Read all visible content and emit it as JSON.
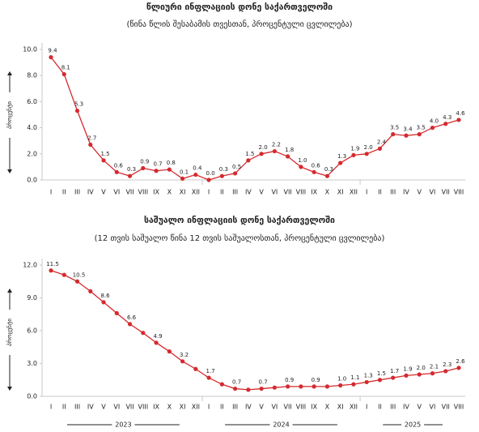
{
  "chart_data": [
    {
      "type": "line",
      "title": "წლიური ინფლაციის დონე საქართველოში",
      "subtitle": "(წინა წლის შესაბამის თვესთან, პროცენტული ცვლილება)",
      "y_label": "პროცენტი",
      "categories": [
        "I",
        "II",
        "III",
        "IV",
        "V",
        "VI",
        "VII",
        "VIII",
        "IX",
        "X",
        "XI",
        "XII",
        "I",
        "II",
        "III",
        "IV",
        "V",
        "VI",
        "VII",
        "VIII",
        "IX",
        "X",
        "XI",
        "XII",
        "I",
        "II",
        "III",
        "IV",
        "V",
        "VI",
        "VII",
        "VIII"
      ],
      "series": [
        {
          "color": "#d42a2f",
          "values": [
            9.4,
            8.1,
            5.3,
            2.7,
            1.5,
            0.6,
            0.3,
            0.9,
            0.7,
            0.8,
            0.1,
            0.4,
            0.0,
            0.3,
            0.5,
            1.5,
            2.0,
            2.2,
            1.8,
            1.0,
            0.6,
            0.3,
            1.3,
            1.9,
            2.0,
            2.4,
            3.5,
            3.4,
            3.5,
            4.0,
            4.3,
            4.6
          ],
          "value_labels": [
            "9.4",
            "8.1",
            "5.3",
            "2.7",
            "1.5",
            "0.6",
            "0.3",
            "0.9",
            "0.7",
            "0.8",
            "0.1",
            "0.4",
            "0.0",
            "0.3",
            "0.5",
            "1.5",
            "2.0",
            "2.2",
            "1.8",
            "1.0",
            "0.6",
            "0.3",
            "1.3",
            "1.9",
            "2.0",
            "2.4",
            "3.5",
            "3.4",
            "3.5",
            "4.0",
            "4.3",
            "4.6"
          ]
        }
      ],
      "ylim": [
        0,
        10
      ],
      "yticks": [
        {
          "value": 0,
          "label": "0.0"
        },
        {
          "value": 2,
          "label": "2.0"
        },
        {
          "value": 4,
          "label": "4.0"
        },
        {
          "value": 6,
          "label": "6.0"
        },
        {
          "value": 8,
          "label": "8.0"
        },
        {
          "value": 10,
          "label": "10.0"
        }
      ]
    },
    {
      "type": "line",
      "title": "საშუალო ინფლაციის დონე საქართველოში",
      "subtitle": "(12 თვის საშუალო წინა 12 თვის საშუალოსთან, პროცენტული ცვლილება)",
      "y_label": "პროცენტი",
      "categories": [
        "I",
        "II",
        "III",
        "IV",
        "V",
        "VI",
        "VII",
        "VIII",
        "IX",
        "X",
        "XI",
        "XII",
        "I",
        "II",
        "III",
        "IV",
        "V",
        "VI",
        "VII",
        "VIII",
        "IX",
        "X",
        "XI",
        "XII",
        "I",
        "II",
        "III",
        "IV",
        "V",
        "VI",
        "VII",
        "VIII"
      ],
      "groups": [
        "2023",
        "2024",
        "2025"
      ],
      "series": [
        {
          "color": "#d42a2f",
          "values": [
            11.5,
            11.1,
            10.5,
            9.6,
            8.6,
            7.6,
            6.6,
            5.8,
            4.9,
            4.1,
            3.2,
            2.5,
            1.7,
            1.1,
            0.7,
            0.6,
            0.7,
            0.8,
            0.9,
            0.9,
            0.9,
            0.9,
            1.0,
            1.1,
            1.3,
            1.5,
            1.7,
            1.9,
            2.0,
            2.1,
            2.3,
            2.6
          ],
          "value_labels": [
            "11.5",
            null,
            "10.5",
            null,
            "8.6",
            null,
            "6.6",
            null,
            "4.9",
            null,
            "3.2",
            null,
            "1.7",
            null,
            "0.7",
            null,
            "0.7",
            null,
            "0.9",
            null,
            "0.9",
            null,
            "1.0",
            "1.1",
            "1.3",
            "1.5",
            "1.7",
            "1.9",
            "2.0",
            "2.1",
            "2.3",
            "2.6"
          ]
        }
      ],
      "ylim": [
        0,
        12
      ],
      "yticks": [
        {
          "value": 0,
          "label": "0.0"
        },
        {
          "value": 3,
          "label": "3.0"
        },
        {
          "value": 6,
          "label": "6.0"
        },
        {
          "value": 9,
          "label": "9.0"
        },
        {
          "value": 12,
          "label": "12.0"
        }
      ]
    }
  ]
}
